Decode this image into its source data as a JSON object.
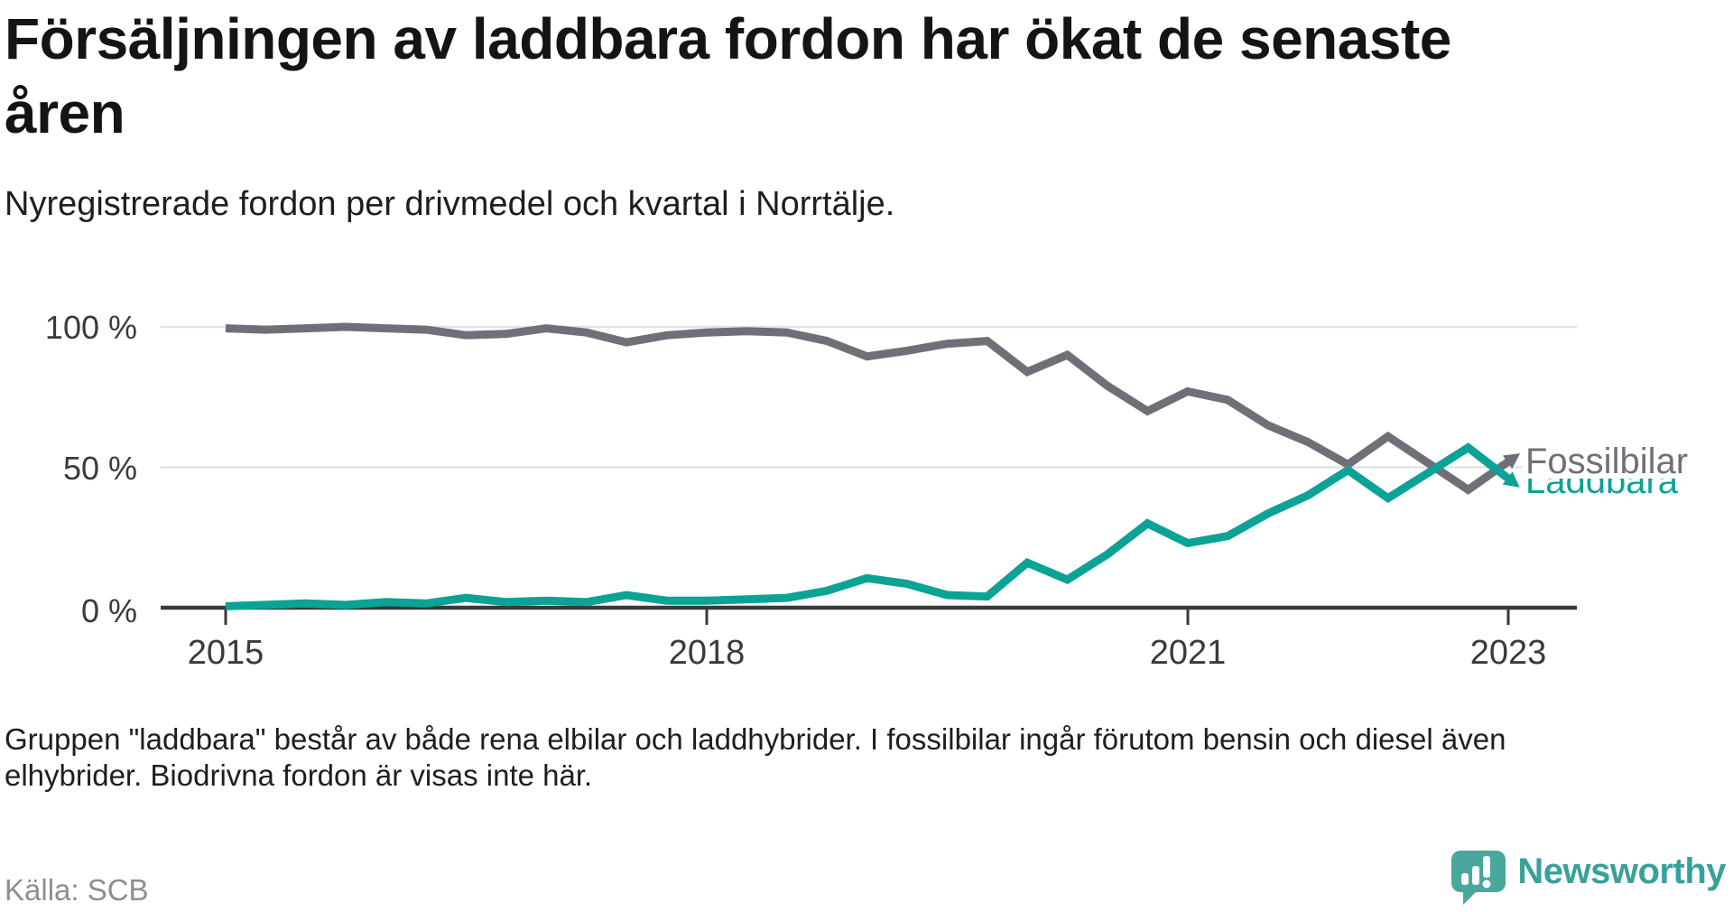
{
  "title": {
    "lines": [
      "Försäljningen av laddbara fordon har ökat de senaste",
      "åren"
    ]
  },
  "subtitle": "Nyregistrerade fordon per drivmedel och kvartal i Norrtälje.",
  "footnote": {
    "lines": [
      "Gruppen \"laddbara\" består av både rena elbilar och laddhybrider. I fossilbilar ingår förutom bensin och diesel även",
      "elhybrider. Biodrivna fordon är visas inte här."
    ]
  },
  "source": "Källa: SCB",
  "logo": {
    "text": "Newsworthy",
    "icon": "speech-bubble-bar-chart",
    "icon_color": "#4aa79d",
    "text_color": "#38a29a"
  },
  "colors": {
    "fossil_gray": "#6f6f78",
    "laddbara_teal": "#0aa396",
    "gridline": "#e4e4e4",
    "axis": "#3a3a3a",
    "source_gray": "#8e8e8e"
  },
  "chart_data": {
    "type": "line",
    "unit": "percent",
    "title": "Försäljningen av laddbara fordon har ökat de senaste åren",
    "xlabel": "",
    "ylabel": "",
    "ylim": [
      0,
      100
    ],
    "grid": "horizontal",
    "legend_position": "end-of-line-labels",
    "y_tick_labels": [
      "100 %",
      "50 %",
      "0 %"
    ],
    "y_tick_values": [
      100,
      50,
      0
    ],
    "x_tick_labels": [
      "2015",
      "2018",
      "2021",
      "2023"
    ],
    "x_tick_indices": [
      0,
      12,
      24,
      32
    ],
    "x": [
      "2015 Q1",
      "2015 Q2",
      "2015 Q3",
      "2015 Q4",
      "2016 Q1",
      "2016 Q2",
      "2016 Q3",
      "2016 Q4",
      "2017 Q1",
      "2017 Q2",
      "2017 Q3",
      "2017 Q4",
      "2018 Q1",
      "2018 Q2",
      "2018 Q3",
      "2018 Q4",
      "2019 Q1",
      "2019 Q2",
      "2019 Q3",
      "2019 Q4",
      "2020 Q1",
      "2020 Q2",
      "2020 Q3",
      "2020 Q4",
      "2021 Q1",
      "2021 Q2",
      "2021 Q3",
      "2021 Q4",
      "2022 Q1",
      "2022 Q2",
      "2022 Q3",
      "2022 Q4",
      "2023 Q1"
    ],
    "series": [
      {
        "name": "Fossilbilar",
        "color": "#6f6f78",
        "values": [
          99.5,
          99,
          99.5,
          100,
          99.5,
          99,
          97,
          97.5,
          99.5,
          98,
          94.5,
          97,
          98,
          98.5,
          98,
          95,
          89.5,
          91.5,
          94,
          95,
          84,
          90,
          79,
          70,
          77,
          74,
          65,
          59,
          51,
          61,
          51.5,
          42,
          52
        ]
      },
      {
        "name": "Laddbara",
        "color": "#0aa396",
        "values": [
          0.5,
          1,
          1.5,
          1,
          2,
          1.5,
          3.5,
          2,
          2.5,
          2,
          4.5,
          2.5,
          2.5,
          3,
          3.5,
          6,
          10.5,
          8.5,
          4.5,
          4,
          16,
          10,
          19,
          30,
          23,
          25.5,
          33.5,
          40,
          49,
          39,
          48,
          57,
          46
        ]
      }
    ]
  }
}
